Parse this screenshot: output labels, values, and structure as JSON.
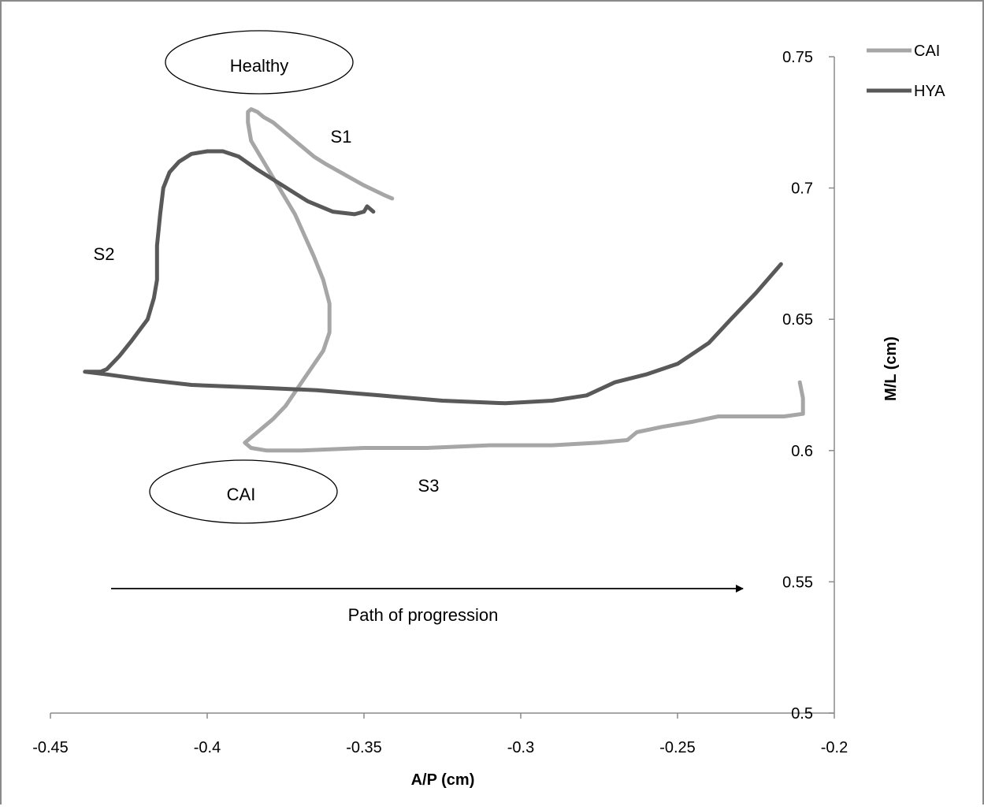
{
  "chart_data": {
    "type": "line",
    "title": "",
    "xlabel": "A/P (cm)",
    "ylabel": "M/L (cm)",
    "xlim": [
      -0.45,
      -0.2
    ],
    "ylim": [
      0.5,
      0.75
    ],
    "x_ticks": [
      "-0.45",
      "-0.4",
      "-0.35",
      "-0.3",
      "-0.25",
      "-0.2"
    ],
    "y_ticks": [
      "0.5",
      "0.55",
      "0.6",
      "0.65",
      "0.7",
      "0.75"
    ],
    "y_axis_position": "right",
    "grid": false,
    "legend_position": "top-right",
    "series": [
      {
        "name": "CAI",
        "color": "#a6a6a6",
        "points": [
          [
            -0.341,
            0.696
          ],
          [
            -0.343,
            0.697
          ],
          [
            -0.35,
            0.701
          ],
          [
            -0.356,
            0.705
          ],
          [
            -0.362,
            0.709
          ],
          [
            -0.366,
            0.712
          ],
          [
            -0.371,
            0.717
          ],
          [
            -0.375,
            0.721
          ],
          [
            -0.379,
            0.725
          ],
          [
            -0.382,
            0.727
          ],
          [
            -0.384,
            0.729
          ],
          [
            -0.386,
            0.73
          ],
          [
            -0.387,
            0.729
          ],
          [
            -0.387,
            0.725
          ],
          [
            -0.386,
            0.718
          ],
          [
            -0.384,
            0.714
          ],
          [
            -0.38,
            0.706
          ],
          [
            -0.376,
            0.698
          ],
          [
            -0.372,
            0.69
          ],
          [
            -0.369,
            0.682
          ],
          [
            -0.366,
            0.674
          ],
          [
            -0.363,
            0.665
          ],
          [
            -0.361,
            0.656
          ],
          [
            -0.361,
            0.645
          ],
          [
            -0.363,
            0.638
          ],
          [
            -0.367,
            0.631
          ],
          [
            -0.371,
            0.624
          ],
          [
            -0.375,
            0.617
          ],
          [
            -0.379,
            0.612
          ],
          [
            -0.384,
            0.607
          ],
          [
            -0.388,
            0.603
          ],
          [
            -0.386,
            0.601
          ],
          [
            -0.381,
            0.6
          ],
          [
            -0.37,
            0.6
          ],
          [
            -0.35,
            0.601
          ],
          [
            -0.33,
            0.601
          ],
          [
            -0.31,
            0.602
          ],
          [
            -0.29,
            0.602
          ],
          [
            -0.275,
            0.603
          ],
          [
            -0.266,
            0.604
          ],
          [
            -0.263,
            0.607
          ],
          [
            -0.255,
            0.609
          ],
          [
            -0.245,
            0.611
          ],
          [
            -0.237,
            0.613
          ],
          [
            -0.225,
            0.613
          ],
          [
            -0.216,
            0.613
          ],
          [
            -0.21,
            0.614
          ],
          [
            -0.21,
            0.62
          ],
          [
            -0.211,
            0.626
          ]
        ]
      },
      {
        "name": "HYA",
        "color": "#595959",
        "points": [
          [
            -0.347,
            0.691
          ],
          [
            -0.349,
            0.693
          ],
          [
            -0.35,
            0.691
          ],
          [
            -0.353,
            0.69
          ],
          [
            -0.36,
            0.691
          ],
          [
            -0.368,
            0.695
          ],
          [
            -0.376,
            0.701
          ],
          [
            -0.384,
            0.707
          ],
          [
            -0.39,
            0.712
          ],
          [
            -0.395,
            0.714
          ],
          [
            -0.4,
            0.714
          ],
          [
            -0.405,
            0.713
          ],
          [
            -0.409,
            0.71
          ],
          [
            -0.412,
            0.706
          ],
          [
            -0.414,
            0.7
          ],
          [
            -0.415,
            0.69
          ],
          [
            -0.416,
            0.678
          ],
          [
            -0.416,
            0.665
          ],
          [
            -0.417,
            0.658
          ],
          [
            -0.419,
            0.65
          ],
          [
            -0.424,
            0.642
          ],
          [
            -0.428,
            0.636
          ],
          [
            -0.432,
            0.631
          ],
          [
            -0.434,
            0.63
          ],
          [
            -0.439,
            0.63
          ],
          [
            -0.432,
            0.629
          ],
          [
            -0.42,
            0.627
          ],
          [
            -0.405,
            0.625
          ],
          [
            -0.385,
            0.624
          ],
          [
            -0.365,
            0.623
          ],
          [
            -0.345,
            0.621
          ],
          [
            -0.325,
            0.619
          ],
          [
            -0.305,
            0.618
          ],
          [
            -0.29,
            0.619
          ],
          [
            -0.279,
            0.621
          ],
          [
            -0.27,
            0.626
          ],
          [
            -0.26,
            0.629
          ],
          [
            -0.25,
            0.633
          ],
          [
            -0.24,
            0.641
          ],
          [
            -0.233,
            0.65
          ],
          [
            -0.225,
            0.66
          ],
          [
            -0.217,
            0.671
          ]
        ]
      }
    ]
  },
  "annotations": {
    "healthy": "Healthy",
    "cai": "CAI",
    "s1": "S1",
    "s2": "S2",
    "s3": "S3",
    "progression": "Path of progression"
  }
}
